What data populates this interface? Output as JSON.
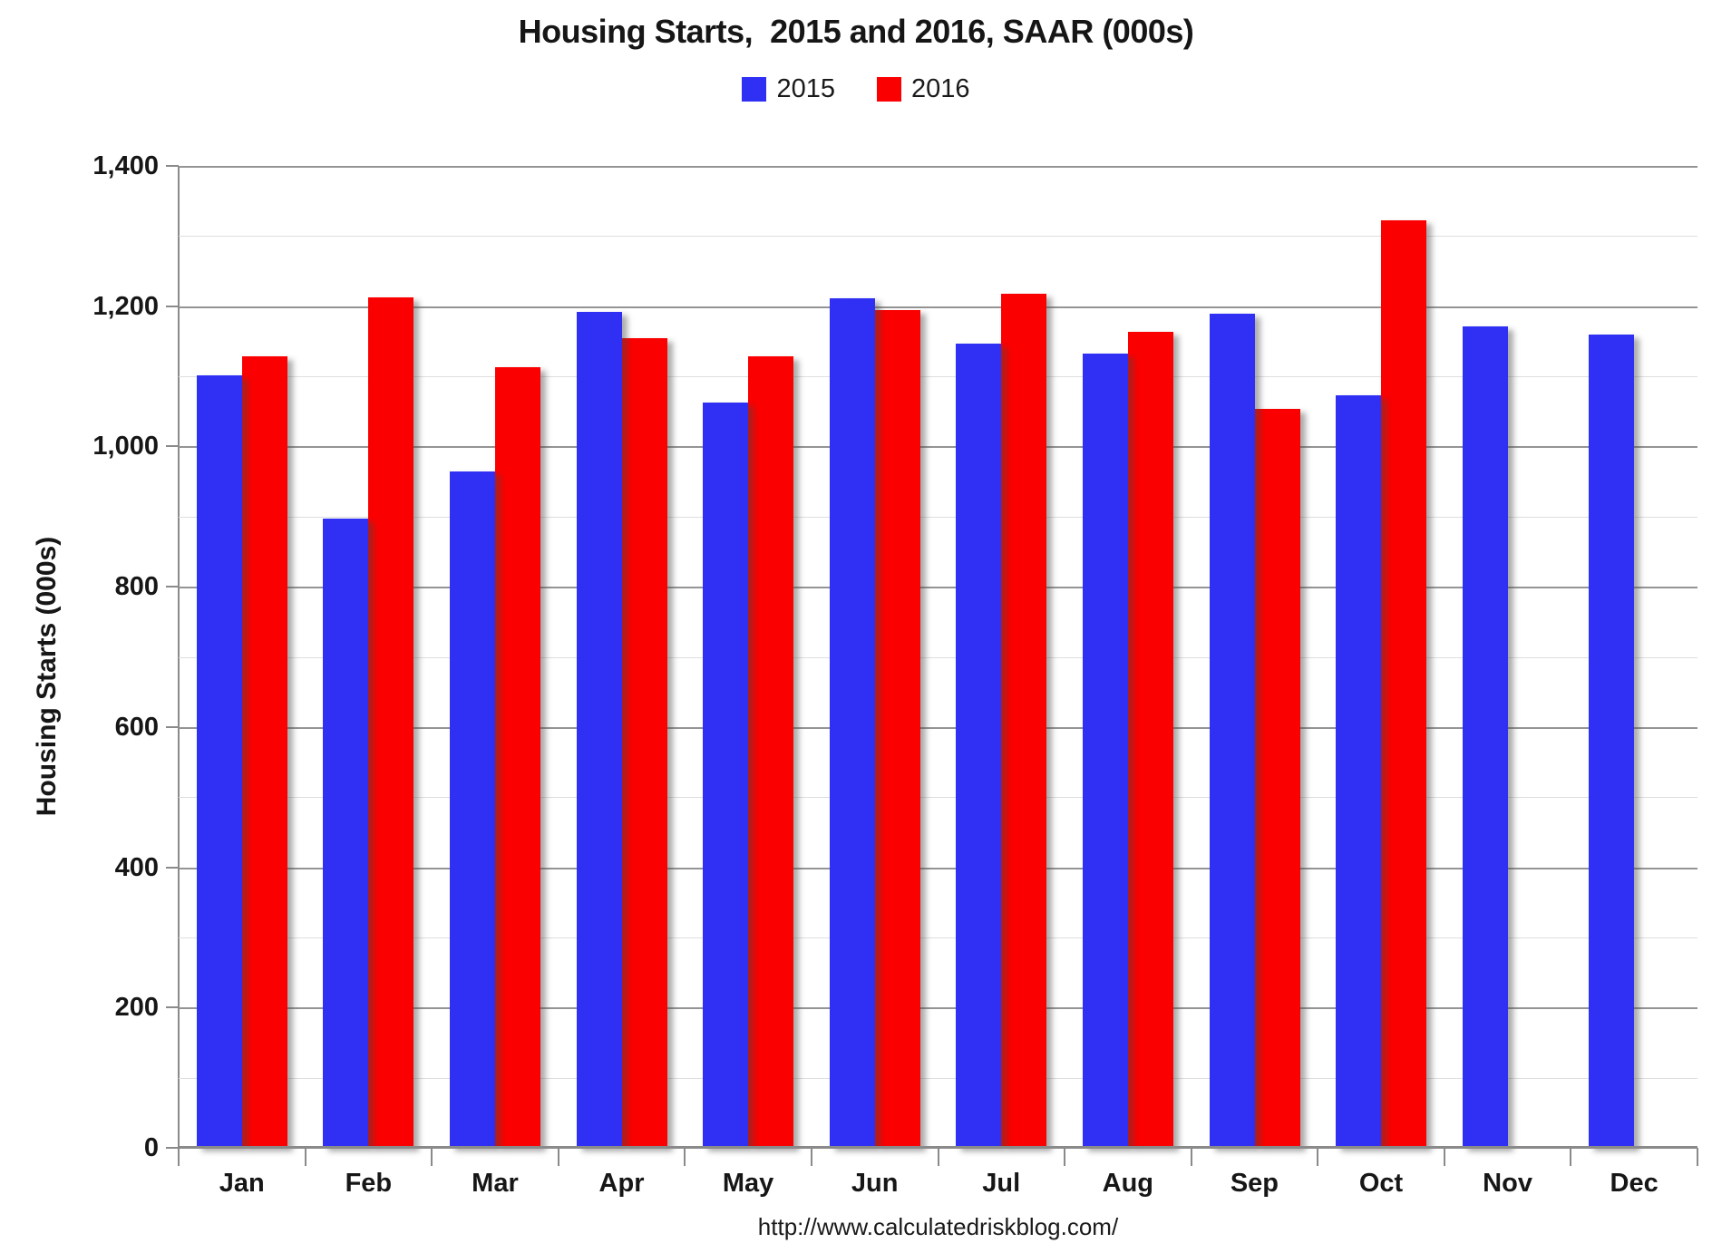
{
  "chart_data": {
    "type": "bar",
    "title": "Housing Starts,  2015 and 2016, SAAR (000s)",
    "ylabel": "Housing Starts (000s)",
    "footer": "http://www.calculatedriskblog.com/",
    "categories": [
      "Jan",
      "Feb",
      "Mar",
      "Apr",
      "May",
      "Jun",
      "Jul",
      "Aug",
      "Sep",
      "Oct",
      "Nov",
      "Dec"
    ],
    "series": [
      {
        "name": "2015",
        "color": "#3030f5",
        "values": [
          1101,
          897,
          964,
          1192,
          1063,
          1211,
          1147,
          1132,
          1189,
          1073,
          1171,
          1160
        ]
      },
      {
        "name": "2016",
        "color": "#fb0000",
        "values": [
          1128,
          1213,
          1113,
          1155,
          1128,
          1195,
          1218,
          1164,
          1054,
          1323,
          null,
          null
        ]
      }
    ],
    "ylim": [
      0,
      1400
    ],
    "ytick_step": 200,
    "minor_step": 100,
    "grid": true,
    "legend_position": "top",
    "colors": {
      "major_gridline": "#949494",
      "minor_gridline": "#dedede",
      "axis": "#8a8a8a",
      "text": "#161616"
    }
  }
}
